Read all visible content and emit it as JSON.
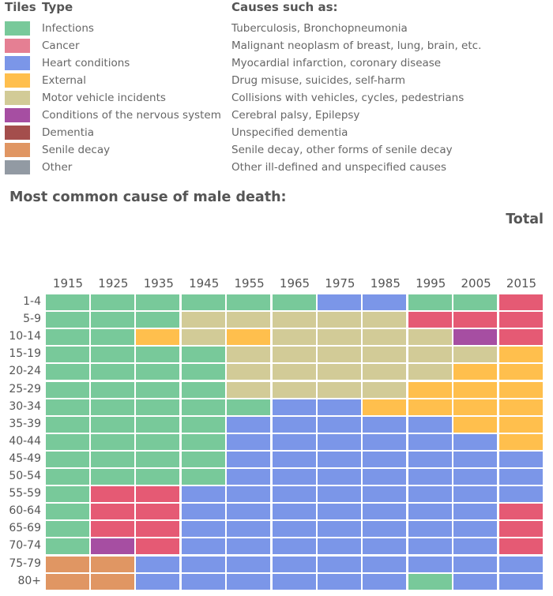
{
  "legend": {
    "tiles_header": "Tiles",
    "type_header": "Type",
    "causes_header": "Causes such as:",
    "items": [
      {
        "key": "I",
        "type": "Infections",
        "causes": "Tuberculosis, Bronchopneumonia",
        "color": "#78c99a",
        "swatch": "#78c99a"
      },
      {
        "key": "C",
        "type": "Cancer",
        "causes": "Malignant neoplasm of breast, lung, brain, etc.",
        "color": "#e55a74",
        "swatch": "#e57f93"
      },
      {
        "key": "H",
        "type": "Heart conditions",
        "causes": "Myocardial infarction, coronary disease",
        "color": "#7b96e8",
        "swatch": "#7b96e8"
      },
      {
        "key": "E",
        "type": "External",
        "causes": "Drug misuse, suicides, self-harm",
        "color": "#ffbf4d",
        "swatch": "#ffbf4d"
      },
      {
        "key": "M",
        "type": "Motor vehicle incidents",
        "causes": "Collisions with vehicles, cycles, pedestrians",
        "color": "#d2cb97",
        "swatch": "#d2cb97"
      },
      {
        "key": "N",
        "type": "Conditions of the nervous system",
        "causes": "Cerebral palsy, Epilepsy",
        "color": "#a64ea2",
        "swatch": "#a64ea2"
      },
      {
        "key": "D",
        "type": "Dementia",
        "causes": "Unspecified dementia",
        "color": "#a44e4c",
        "swatch": "#a44e4c"
      },
      {
        "key": "S",
        "type": "Senile decay",
        "causes": "Senile decay, other forms of senile decay",
        "color": "#e09663",
        "swatch": "#e09663"
      },
      {
        "key": "O",
        "type": "Other",
        "causes": "Other ill-defined and unspecified causes",
        "color": "#929aa3",
        "swatch": "#929aa3"
      }
    ]
  },
  "title": "Most common cause of male death:",
  "subtitle": "Total",
  "chart_data": {
    "type": "heatmap",
    "title": "Most common cause of male death:",
    "x": [
      "1915",
      "1925",
      "1935",
      "1945",
      "1955",
      "1965",
      "1975",
      "1985",
      "1995",
      "2005",
      "2015"
    ],
    "y": [
      "1-4",
      "5-9",
      "10-14",
      "15-19",
      "20-24",
      "25-29",
      "30-34",
      "35-39",
      "40-44",
      "45-49",
      "50-54",
      "55-59",
      "60-64",
      "65-69",
      "70-74",
      "75-79",
      "80+"
    ],
    "cells": [
      "IIIIIIHHIIC",
      "IIIMMMMMCCC",
      "IIEMEMMMMNC",
      "IIIIMMMMMME",
      "IIIIMMMMMEE",
      "IIIIMMMMEEE",
      "IIIIIHHEEEE",
      "IIIIHHHHHEE",
      "IIIIHHHHHHE",
      "IIIIHHHHHHH",
      "IIIIHHHHHHH",
      "ICCHHHHHHHH",
      "ICCHHHHHHHC",
      "ICCHHHHHHHC",
      "INCHHHHHHHC",
      "SSHHHHHHHHH",
      "SSHHHHHHIHH"
    ]
  }
}
